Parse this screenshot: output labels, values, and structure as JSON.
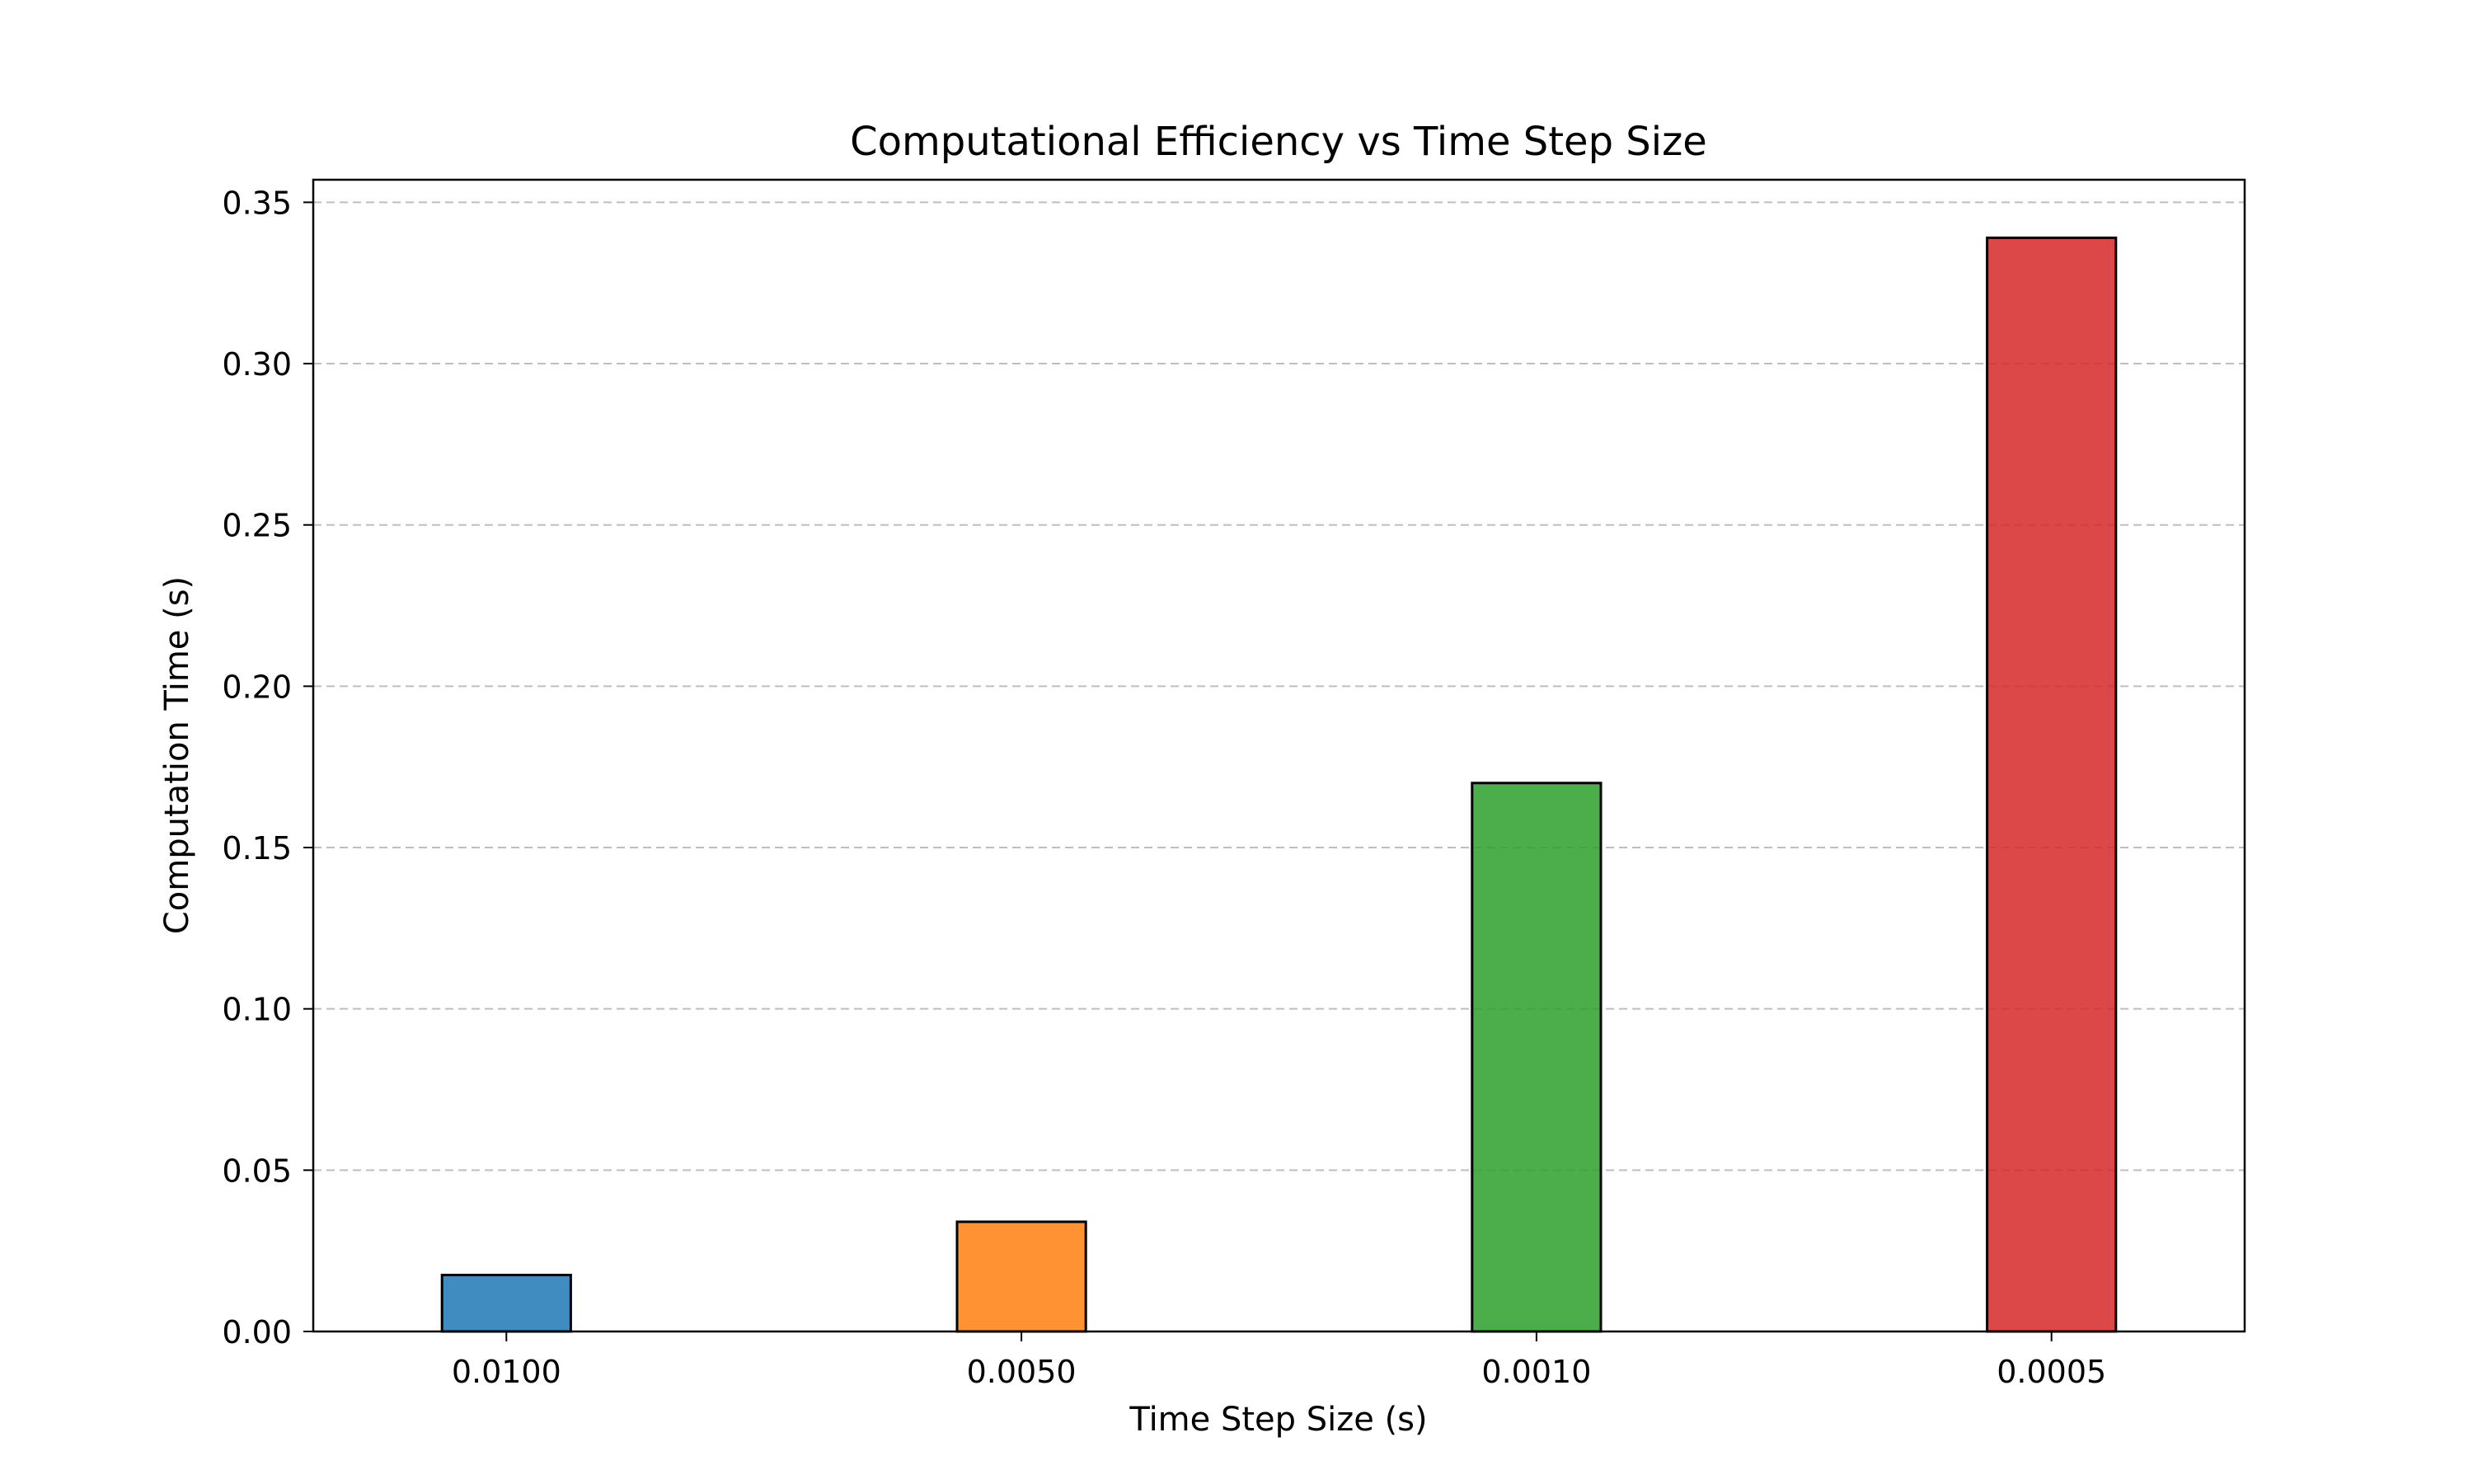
{
  "chart_data": {
    "type": "bar",
    "title": "Computational Efficiency vs Time Step Size",
    "xlabel": "Time Step Size (s)",
    "ylabel": "Computation Time (s)",
    "categories": [
      "0.0100",
      "0.0050",
      "0.0010",
      "0.0005"
    ],
    "values": [
      0.0175,
      0.034,
      0.17,
      0.339
    ],
    "colors": [
      "#1f77b4",
      "#ff7f0e",
      "#2ca02c",
      "#d62728"
    ],
    "ylim": [
      0,
      0.357
    ],
    "yticks": [
      0.0,
      0.05,
      0.1,
      0.15,
      0.2,
      0.25,
      0.3,
      0.35
    ],
    "ytick_labels": [
      "0.00",
      "0.05",
      "0.10",
      "0.15",
      "0.20",
      "0.25",
      "0.30",
      "0.35"
    ],
    "grid": "y-dashed",
    "legend": "none"
  }
}
